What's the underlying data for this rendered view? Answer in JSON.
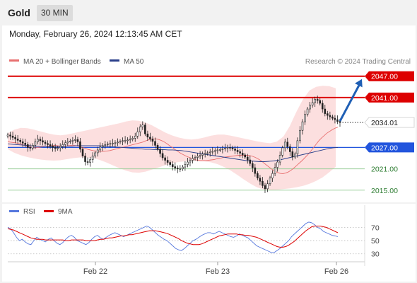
{
  "header": {
    "symbol": "Gold",
    "timeframe": "30 MIN"
  },
  "datetime": "Monday, February 26, 2024 12:13:45 AM CET",
  "legend": {
    "ma20": "MA 20 + Bollinger Bands",
    "ma50": "MA 50",
    "copyright": "Research © 2024 Trading Central"
  },
  "colors": {
    "resistance": "#dd0000",
    "support": "#2e7d32",
    "pivot": "#2255dd",
    "ma20": "#e87070",
    "ma50": "#2a3f8a",
    "band_fill": "#fbd9d9",
    "rsi": "#5577dd",
    "rsi_ma": "#dd0000",
    "arrow": "#1f5fb5",
    "candle": "#222222"
  },
  "rsi_legend": {
    "rsi": "RSI",
    "ma": "9MA"
  },
  "chart_data": [
    {
      "type": "candlestick",
      "title": "Gold",
      "x_ticks": [
        "Feb 22",
        "Feb 23",
        "Feb 26"
      ],
      "ylim": [
        2010,
        2052
      ],
      "last_price": "2034.01",
      "levels": [
        {
          "label": "2047.00",
          "value": 2047.0,
          "kind": "resistance"
        },
        {
          "label": "2041.00",
          "value": 2041.0,
          "kind": "resistance"
        },
        {
          "label": "2027.00",
          "value": 2027.0,
          "kind": "pivot"
        },
        {
          "label": "2021.00",
          "value": 2021.0,
          "kind": "support"
        },
        {
          "label": "2015.00",
          "value": 2015.0,
          "kind": "support"
        }
      ],
      "close": [
        2030.5,
        2030.2,
        2029.8,
        2029.4,
        2029.0,
        2028.6,
        2028.2,
        2027.8,
        2027.0,
        2026.8,
        2027.6,
        2028.6,
        2029.3,
        2028.9,
        2028.5,
        2028.1,
        2027.8,
        2027.4,
        2027.0,
        2026.7,
        2026.9,
        2027.3,
        2027.8,
        2028.3,
        2028.6,
        2028.8,
        2029.0,
        2029.2,
        2028.6,
        2026.5,
        2024.6,
        2023.0,
        2022.8,
        2023.6,
        2024.6,
        2025.5,
        2026.3,
        2027.2,
        2027.5,
        2027.8,
        2028.0,
        2028.1,
        2028.2,
        2028.3,
        2028.5,
        2028.7,
        2028.9,
        2029.0,
        2029.1,
        2029.3,
        2029.6,
        2030.2,
        2031.4,
        2032.8,
        2033.3,
        2030.8,
        2029.9,
        2029.4,
        2028.7,
        2027.6,
        2026.5,
        2025.3,
        2024.1,
        2023.4,
        2022.8,
        2022.2,
        2021.6,
        2021.2,
        2021.0,
        2021.0,
        2021.5,
        2022.2,
        2022.9,
        2023.4,
        2023.9,
        2024.2,
        2024.5,
        2024.8,
        2025.1,
        2025.3,
        2025.5,
        2025.7,
        2025.9,
        2026.1,
        2026.3,
        2026.4,
        2026.6,
        2026.8,
        2027.0,
        2026.9,
        2026.6,
        2026.2,
        2025.8,
        2025.4,
        2024.9,
        2024.3,
        2023.5,
        2022.5,
        2021.3,
        2019.7,
        2018.4,
        2017.5,
        2016.3,
        2015.4,
        2016.8,
        2018.4,
        2019.7,
        2021.4,
        2022.9,
        2024.8,
        2026.9,
        2028.5,
        2027.2,
        2025.8,
        2024.3,
        2025.2,
        2028.9,
        2031.8,
        2034.2,
        2036.3,
        2037.8,
        2038.9,
        2039.6,
        2040.5,
        2040.2,
        2039.4,
        2037.8,
        2036.5,
        2036.0,
        2035.6,
        2035.2,
        2034.8,
        2034.3,
        2034.01
      ],
      "ma20": [
        2028.6,
        2028.5,
        2028.4,
        2028.3,
        2028.1,
        2027.9,
        2027.6,
        2027.4,
        2027.2,
        2027.0,
        2026.9,
        2027.0,
        2027.1,
        2027.2,
        2027.3,
        2027.4,
        2027.5,
        2027.6,
        2027.5,
        2027.4,
        2027.3,
        2027.4,
        2027.5,
        2027.6,
        2027.6,
        2027.5,
        2027.3,
        2027.0,
        2026.8,
        2026.5,
        2026.3,
        2026.1,
        2026.0,
        2025.9,
        2025.9,
        2025.9,
        2026.0,
        2026.1,
        2026.3,
        2026.5,
        2026.7,
        2026.9,
        2027.1,
        2027.3,
        2027.5,
        2027.7,
        2027.9,
        2028.1,
        2028.3,
        2028.5,
        2028.8,
        2029.1,
        2029.3,
        2029.4,
        2029.4,
        2029.2,
        2028.9,
        2028.5,
        2028.0,
        2027.4,
        2026.9,
        2026.3,
        2025.8,
        2025.3,
        2024.9,
        2024.5,
        2024.2,
        2023.9,
        2023.6,
        2023.4,
        2023.3,
        2023.3,
        2023.3,
        2023.4,
        2023.5,
        2023.6,
        2023.8,
        2023.9,
        2024.1,
        2024.3,
        2024.4,
        2024.5,
        2024.6,
        2024.7,
        2024.8,
        2024.8,
        2024.8,
        2024.8,
        2024.7,
        2024.5,
        2024.2,
        2023.8,
        2023.3,
        2022.7,
        2022.1,
        2021.5,
        2020.9,
        2020.4,
        2020.0,
        2019.7,
        2019.6,
        2019.8,
        2020.1,
        2020.6,
        2021.2,
        2021.9,
        2022.6,
        2023.3,
        2024.1,
        2024.9,
        2025.8,
        2026.8,
        2027.8,
        2028.8,
        2029.6,
        2030.3,
        2031.0,
        2031.5,
        2032.0,
        2032.4,
        2032.7
      ],
      "ma50": [
        2028.0,
        2027.9,
        2027.8,
        2027.7,
        2027.6,
        2027.5,
        2027.4,
        2027.3,
        2027.3,
        2027.2,
        2027.2,
        2027.3,
        2027.3,
        2027.4,
        2027.4,
        2027.5,
        2027.5,
        2027.5,
        2027.5,
        2027.5,
        2027.5,
        2027.4,
        2027.3,
        2027.2,
        2027.1,
        2027.0,
        2026.9,
        2026.8,
        2026.7,
        2026.6,
        2026.5,
        2026.5,
        2026.4,
        2026.4,
        2026.4,
        2026.3,
        2026.3,
        2026.2,
        2026.1,
        2025.9,
        2025.7,
        2025.5,
        2025.3,
        2025.1,
        2024.9,
        2024.7,
        2024.5,
        2024.3,
        2024.1,
        2023.9,
        2023.7,
        2023.5,
        2023.3,
        2023.2,
        2023.1,
        2023.0,
        2023.0,
        2023.1,
        2023.2,
        2023.4,
        2023.7,
        2024.0,
        2024.3,
        2024.6,
        2024.9,
        2025.2,
        2025.5,
        2025.8,
        2026.1,
        2026.4,
        2026.7,
        2026.9,
        2027.0
      ],
      "band_upper": [
        2031.0,
        2032.0,
        2032.5,
        2032.4,
        2032.0,
        2031.5,
        2031.0,
        2030.6,
        2030.4,
        2030.6,
        2031.0,
        2031.4,
        2031.8,
        2032.2,
        2032.6,
        2033.0,
        2033.4,
        2033.8,
        2034.3,
        2034.6,
        2034.5,
        2034.0,
        2033.2,
        2032.2,
        2031.2,
        2030.4,
        2029.8,
        2029.4,
        2029.2,
        2029.4,
        2029.8,
        2030.3,
        2030.6,
        2030.6,
        2030.3,
        2029.9,
        2029.5,
        2029.1,
        2028.7,
        2028.4,
        2028.2,
        2028.6,
        2030.0,
        2033.0,
        2037.0,
        2040.5,
        2043.0,
        2044.0,
        2044.3,
        2044.2,
        2043.6
      ],
      "band_lower": [
        2026.5,
        2025.5,
        2024.8,
        2024.3,
        2023.9,
        2023.6,
        2023.4,
        2023.3,
        2023.4,
        2023.7,
        2024.0,
        2024.2,
        2024.2,
        2024.0,
        2023.5,
        2022.8,
        2022.0,
        2021.2,
        2020.5,
        2020.0,
        2019.9,
        2020.2,
        2020.8,
        2021.4,
        2022.0,
        2022.5,
        2022.9,
        2023.1,
        2023.2,
        2023.2,
        2023.1,
        2022.8,
        2022.3,
        2021.5,
        2020.5,
        2019.3,
        2018.0,
        2016.8,
        2015.8,
        2015.2,
        2015.0,
        2015.1,
        2015.3,
        2015.5,
        2015.8,
        2016.2,
        2016.8,
        2017.6,
        2018.6,
        2020.0,
        2021.6
      ]
    },
    {
      "type": "line",
      "title": "RSI",
      "series": [
        {
          "name": "RSI",
          "values": [
            70,
            68,
            62,
            55,
            50,
            52,
            48,
            45,
            44,
            50,
            55,
            52,
            50,
            48,
            52,
            54,
            50,
            46,
            44,
            47,
            52,
            56,
            58,
            55,
            50,
            48,
            46,
            44,
            47,
            52,
            56,
            58,
            54,
            52,
            55,
            58,
            60,
            62,
            60,
            58,
            56,
            58,
            60,
            62,
            64,
            66,
            68,
            70,
            72,
            70,
            66,
            62,
            58,
            55,
            52,
            50,
            46,
            42,
            38,
            36,
            35,
            38,
            42,
            46,
            50,
            52,
            55,
            58,
            60,
            62,
            62,
            60,
            62,
            64,
            62,
            60,
            58,
            56,
            55,
            57,
            60,
            58,
            56,
            54,
            50,
            46,
            42,
            40,
            38,
            36,
            34,
            32,
            32,
            35,
            38,
            42,
            46,
            50,
            56,
            60,
            64,
            68,
            72,
            76,
            78,
            77,
            74,
            70,
            68,
            64,
            62,
            60,
            58,
            57,
            56
          ]
        },
        {
          "name": "9MA",
          "values": [
            68,
            67,
            66,
            64,
            62,
            60,
            58,
            56,
            54,
            53,
            52,
            52,
            52,
            51,
            51,
            51,
            51,
            51,
            51,
            51,
            50,
            50,
            51,
            51,
            51,
            51,
            51,
            50,
            50,
            50,
            50,
            51,
            52,
            52,
            53,
            54,
            54,
            55,
            56,
            57,
            57,
            58,
            59,
            59,
            60,
            61,
            62,
            63,
            64,
            65,
            65,
            65,
            64,
            63,
            62,
            61,
            59,
            57,
            55,
            53,
            50,
            48,
            46,
            45,
            44,
            44,
            44,
            45,
            47,
            49,
            51,
            53,
            55,
            57,
            58,
            59,
            60,
            60,
            60,
            60,
            59,
            59,
            58,
            58,
            57,
            56,
            55,
            53,
            51,
            49,
            47,
            45,
            43,
            41,
            40,
            40,
            41,
            43,
            46,
            49,
            53,
            57,
            61,
            65,
            68,
            71,
            72,
            72,
            72,
            71,
            70,
            68,
            66,
            64,
            62
          ]
        }
      ],
      "ylim": [
        20,
        80
      ],
      "y_ticks": [
        "70",
        "50",
        "30"
      ]
    }
  ]
}
